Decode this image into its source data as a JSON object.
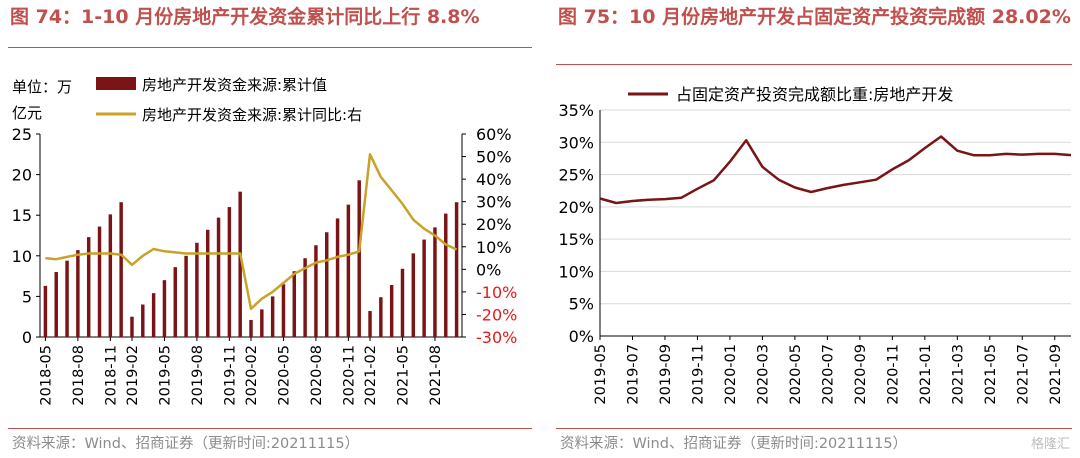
{
  "chart_data": [
    {
      "type": "bar",
      "title": "图 74：1-10 月份房地产开发资金累计同比上行 8.8%",
      "ylabel": "单位：万亿元",
      "ylim": [
        0,
        25
      ],
      "y_ticks": [
        "0",
        "5",
        "10",
        "15",
        "20",
        "25"
      ],
      "y2lim": [
        -30,
        60
      ],
      "y2_ticks": [
        "-30%",
        "-20%",
        "-10%",
        "0%",
        "10%",
        "20%",
        "30%",
        "40%",
        "50%",
        "60%"
      ],
      "x_tick_labels": [
        "2018-05",
        "2018-08",
        "2018-11",
        "2019-02",
        "2019-05",
        "2019-08",
        "2019-11",
        "2020-02",
        "2020-05",
        "2020-08",
        "2020-11",
        "2021-02",
        "2021-05",
        "2021-08"
      ],
      "categories": [
        "2018-05",
        "2018-06",
        "2018-07",
        "2018-08",
        "2018-09",
        "2018-10",
        "2018-11",
        "2018-12",
        "2019-02",
        "2019-03",
        "2019-04",
        "2019-05",
        "2019-06",
        "2019-07",
        "2019-08",
        "2019-09",
        "2019-10",
        "2019-11",
        "2019-12",
        "2020-02",
        "2020-03",
        "2020-04",
        "2020-05",
        "2020-06",
        "2020-07",
        "2020-08",
        "2020-09",
        "2020-10",
        "2020-11",
        "2020-12",
        "2021-02",
        "2021-03",
        "2021-04",
        "2021-05",
        "2021-06",
        "2021-07",
        "2021-08",
        "2021-09",
        "2021-10"
      ],
      "series": [
        {
          "name": "房地产开发资金来源:累计值",
          "axis": "left",
          "type": "bar",
          "values": [
            6.3,
            8.0,
            9.4,
            10.7,
            12.3,
            13.6,
            15.1,
            16.6,
            2.5,
            4.0,
            5.4,
            7.0,
            8.6,
            10.0,
            11.6,
            13.2,
            14.7,
            16.0,
            17.9,
            2.1,
            3.4,
            5.0,
            6.5,
            8.1,
            9.7,
            11.3,
            12.9,
            14.6,
            16.3,
            19.3,
            3.2,
            4.9,
            6.4,
            8.4,
            10.3,
            12.0,
            13.5,
            15.2,
            16.6
          ]
        },
        {
          "name": "房地产开发资金来源:累计同比:右",
          "axis": "right",
          "type": "line",
          "color": "#C9A227",
          "values": [
            5.0,
            4.5,
            5.5,
            6.5,
            7.0,
            7.0,
            7.0,
            6.5,
            2.0,
            6.0,
            9.0,
            8.0,
            7.5,
            7.0,
            7.0,
            7.0,
            7.0,
            7.0,
            7.0,
            -17.5,
            -13.0,
            -10.0,
            -6.0,
            -2.0,
            0.5,
            3.0,
            4.0,
            5.5,
            6.5,
            8.0,
            51.0,
            41.0,
            35.0,
            29.0,
            22.0,
            18.0,
            15.0,
            11.0,
            8.8
          ]
        }
      ],
      "bar_color": "#7B1416",
      "line_color": "#C9A227",
      "legend_position": "top",
      "grid": false
    },
    {
      "type": "line",
      "title": "图 75：10 月份房地产开发占固定资产投资完成额 28.02%",
      "ylim": [
        0,
        35
      ],
      "y_ticks": [
        "0%",
        "5%",
        "10%",
        "15%",
        "20%",
        "25%",
        "30%",
        "35%"
      ],
      "x_tick_labels": [
        "2019-05",
        "2019-07",
        "2019-09",
        "2019-11",
        "2020-01",
        "2020-03",
        "2020-05",
        "2020-07",
        "2020-09",
        "2020-11",
        "2021-01",
        "2021-03",
        "2021-05",
        "2021-07",
        "2021-09"
      ],
      "categories": [
        "2019-05",
        "2019-06",
        "2019-07",
        "2019-08",
        "2019-09",
        "2019-10",
        "2019-11",
        "2019-12",
        "2020-01",
        "2020-02",
        "2020-03",
        "2020-04",
        "2020-05",
        "2020-06",
        "2020-07",
        "2020-08",
        "2020-09",
        "2020-10",
        "2020-11",
        "2020-12",
        "2021-01",
        "2021-02",
        "2021-03",
        "2021-04",
        "2021-05",
        "2021-06",
        "2021-07",
        "2021-08",
        "2021-09",
        "2021-10"
      ],
      "series": [
        {
          "name": "占固定资产投资完成额比重:房地产开发",
          "values": [
            21.3,
            20.6,
            20.9,
            21.1,
            21.2,
            21.4,
            22.8,
            24.1,
            27.0,
            30.3,
            26.2,
            24.2,
            23.0,
            22.3,
            22.9,
            23.4,
            23.8,
            24.2,
            25.8,
            27.2,
            29.1,
            30.9,
            28.7,
            28.0,
            28.0,
            28.2,
            28.1,
            28.2,
            28.2,
            28.02
          ]
        }
      ],
      "line_color": "#7B1416",
      "legend_position": "top",
      "grid": true
    }
  ],
  "footer": {
    "source_left": "资料来源：Wind、招商证券（更新时间:20211115）",
    "source_right": "资料来源：Wind、招商证券（更新时间:20211115）",
    "watermark": "格隆汇"
  },
  "labels": {
    "unit_line1": "单位：万",
    "unit_line2": "亿元"
  }
}
